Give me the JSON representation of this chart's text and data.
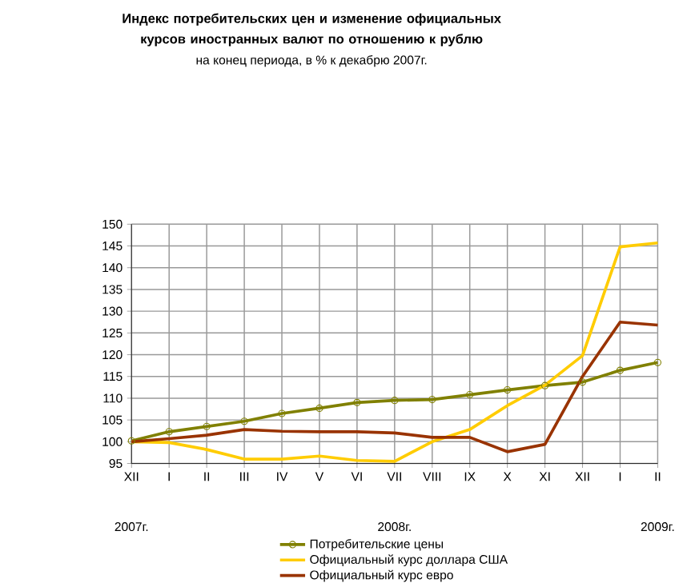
{
  "chart_data": {
    "type": "line",
    "title": "Индекс потребительских цен и изменение официальных курсов иностранных валют по отношению к рублю",
    "subtitle": "на конец периода, в % к декабрю 2007г.",
    "categories": [
      "XII",
      "I",
      "II",
      "III",
      "IV",
      "V",
      "VI",
      "VII",
      "VIII",
      "IX",
      "X",
      "XI",
      "XII",
      "I",
      "II"
    ],
    "series": [
      {
        "name": "Потребительские цены",
        "color": "#808000",
        "marker": "circle",
        "values": [
          100.2,
          102.3,
          103.5,
          104.7,
          106.5,
          107.7,
          109.0,
          109.5,
          109.7,
          110.8,
          111.9,
          112.9,
          113.7,
          116.4,
          118.2
        ]
      },
      {
        "name": "Официальный курс доллара США",
        "color": "#ffcc00",
        "marker": "none",
        "values": [
          100.0,
          99.8,
          98.2,
          96.0,
          96.0,
          96.7,
          95.7,
          95.5,
          100.0,
          102.8,
          108.3,
          113.0,
          119.8,
          144.8,
          145.7
        ]
      },
      {
        "name": "Официальный курс евро",
        "color": "#993300",
        "marker": "none",
        "values": [
          100.0,
          100.7,
          101.5,
          102.8,
          102.4,
          102.3,
          102.3,
          102.0,
          101.0,
          101.0,
          97.7,
          99.4,
          115.0,
          127.5,
          126.8
        ]
      }
    ],
    "ylim": [
      95,
      150
    ],
    "yticks": [
      95,
      100,
      105,
      110,
      115,
      120,
      125,
      130,
      135,
      140,
      145,
      150
    ],
    "grid": true,
    "legend": "bottom",
    "annotations": [
      "2007г.",
      "2008г.",
      "2009г."
    ]
  }
}
